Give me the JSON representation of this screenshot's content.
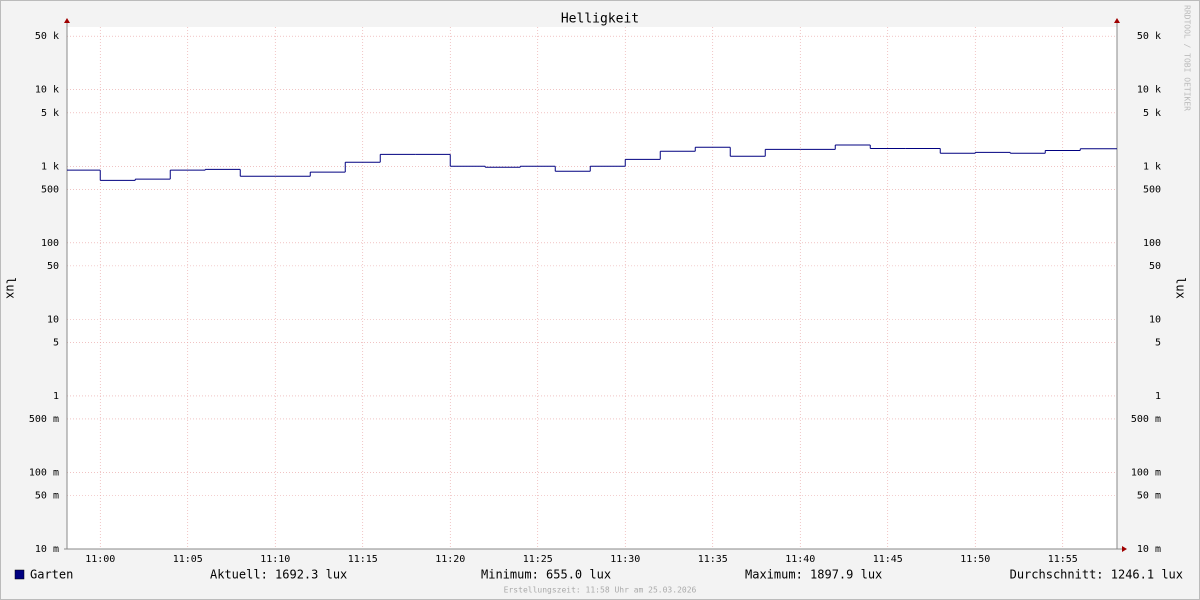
{
  "chart_data": {
    "type": "line",
    "title": "Helligkeit",
    "y_label": "lux",
    "log_y": true,
    "grid": true,
    "x": [
      -1.9,
      0,
      2,
      4,
      6,
      8,
      10,
      12,
      14,
      16,
      18,
      20,
      22,
      24,
      26,
      28,
      30,
      32,
      34,
      36,
      38,
      40,
      42,
      44,
      46,
      48,
      50,
      52,
      54,
      56
    ],
    "series": [
      {
        "name": "Garten",
        "color": "#000080",
        "step": true,
        "values": [
          890,
          655,
          680,
          890,
          910,
          740,
          740,
          840,
          1130,
          1430,
          1430,
          1000,
          970,
          1000,
          860,
          1000,
          1230,
          1570,
          1770,
          1350,
          1660,
          1660,
          1897.9,
          1710,
          1710,
          1480,
          1520,
          1480,
          1610,
          1692.3
        ]
      }
    ],
    "xlim": [
      -1.9,
      58.1
    ],
    "xticks": [
      {
        "value": 0,
        "label": "11:00"
      },
      {
        "value": 5,
        "label": "11:05"
      },
      {
        "value": 10,
        "label": "11:10"
      },
      {
        "value": 15,
        "label": "11:15"
      },
      {
        "value": 20,
        "label": "11:20"
      },
      {
        "value": 25,
        "label": "11:25"
      },
      {
        "value": 30,
        "label": "11:30"
      },
      {
        "value": 35,
        "label": "11:35"
      },
      {
        "value": 40,
        "label": "11:40"
      },
      {
        "value": 45,
        "label": "11:45"
      },
      {
        "value": 50,
        "label": "11:50"
      },
      {
        "value": 55,
        "label": "11:55"
      }
    ],
    "ylim": [
      0.01,
      66000
    ],
    "yticks": [
      {
        "value": 0.01,
        "label": "10 m"
      },
      {
        "value": 0.05,
        "label": "50 m"
      },
      {
        "value": 0.1,
        "label": "100 m"
      },
      {
        "value": 0.5,
        "label": "500 m"
      },
      1,
      5,
      10,
      50,
      100,
      500,
      {
        "value": 1000,
        "label": "1 k"
      },
      {
        "value": 5000,
        "label": "5 k"
      },
      {
        "value": 10000,
        "label": "10 k"
      },
      {
        "value": 50000,
        "label": "50 k"
      }
    ],
    "stats": [
      "Aktuell: 1692.3 lux",
      "Minimum: 655.0 lux",
      "Maximum: 1897.9 lux",
      "Durchschnitt: 1246.1 lux"
    ],
    "watermark": "RRDTOOL / TOBI OETIKER",
    "footnote": "Erstellungszeit: 11:58 Uhr am 25.03.2026"
  }
}
